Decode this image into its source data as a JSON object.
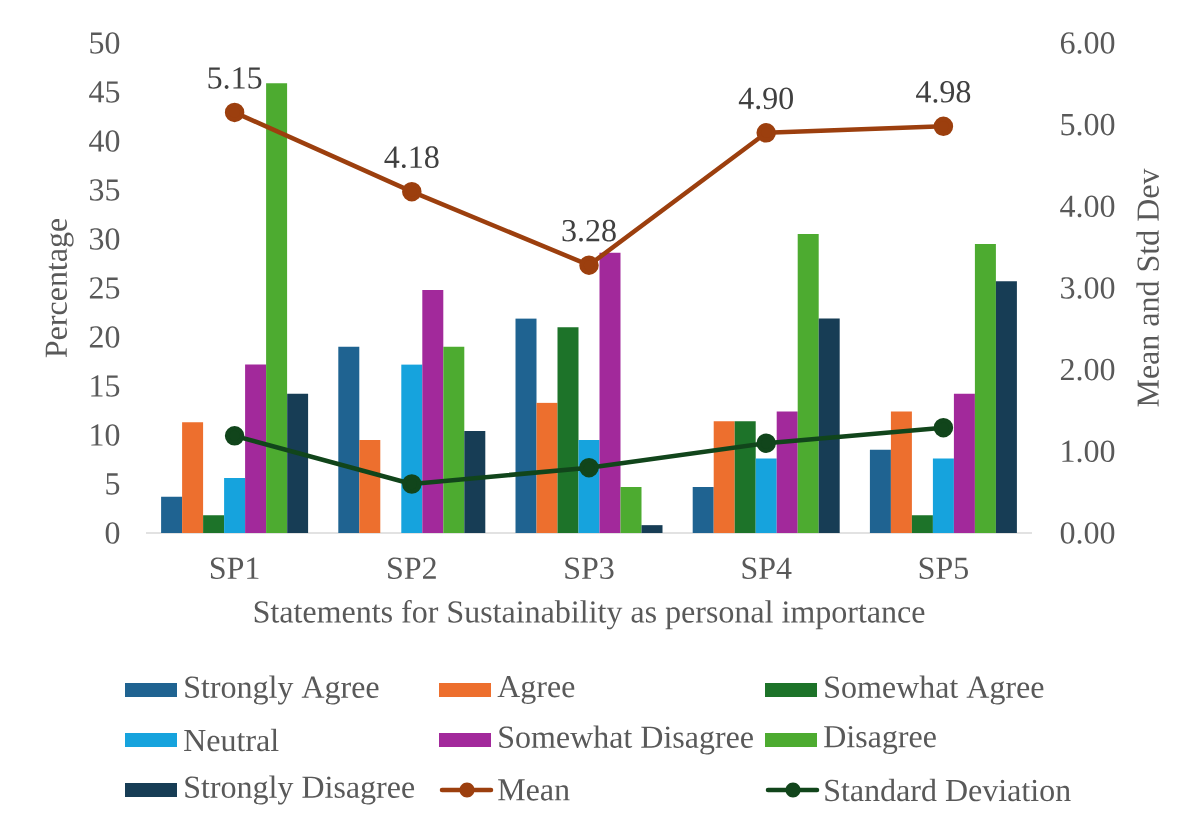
{
  "chart_data": {
    "type": "bar",
    "xlabel": "Statements for Sustainability as personal importance",
    "ylabel": "Percentage",
    "y2label": "Mean and Std Dev",
    "categories": [
      "SP1",
      "SP2",
      "SP3",
      "SP4",
      "SP5"
    ],
    "series": [
      {
        "name": "Strongly Agree",
        "color": "#1f6391",
        "values": [
          3.7,
          19.0,
          21.9,
          4.7,
          8.5
        ]
      },
      {
        "name": "Agree",
        "color": "#ed6f2e",
        "values": [
          11.3,
          9.5,
          13.3,
          11.4,
          12.4
        ]
      },
      {
        "name": "Somewhat Agree",
        "color": "#1d7329",
        "values": [
          1.8,
          null,
          21.0,
          11.4,
          1.8
        ]
      },
      {
        "name": "Neutral",
        "color": "#16a3dd",
        "values": [
          5.6,
          17.2,
          9.5,
          7.6,
          7.6
        ]
      },
      {
        "name": "Somewhat Disagree",
        "color": "#a2299b",
        "values": [
          17.2,
          24.8,
          28.6,
          12.4,
          14.2
        ]
      },
      {
        "name": "Disagree",
        "color": "#4dab30",
        "values": [
          45.9,
          19.0,
          4.7,
          30.5,
          29.5
        ]
      },
      {
        "name": "Strongly Disagree",
        "color": "#173d55",
        "values": [
          14.2,
          10.4,
          0.8,
          21.9,
          25.7
        ]
      },
      {
        "name": "Mean",
        "type": "line",
        "axis": "y2",
        "marker": "circle",
        "color": "#9c3f0e",
        "values": [
          5.15,
          4.18,
          3.28,
          4.9,
          4.98
        ],
        "value_labels": [
          "5.15",
          "4.18",
          "3.28",
          "4.90",
          "4.98"
        ]
      },
      {
        "name": "Standard Deviation",
        "type": "line",
        "axis": "y2",
        "marker": "circle",
        "color": "#11451b",
        "values": [
          1.19,
          0.6,
          0.8,
          1.1,
          1.29
        ]
      }
    ],
    "ylim": [
      0,
      50
    ],
    "yticks": [
      0,
      5,
      10,
      15,
      20,
      25,
      30,
      35,
      40,
      45,
      50
    ],
    "y2lim": [
      0,
      6
    ],
    "y2ticks": [
      {
        "value": 0,
        "label": "0.00"
      },
      {
        "value": 1,
        "label": "1.00"
      },
      {
        "value": 2,
        "label": "2.00"
      },
      {
        "value": 3,
        "label": "3.00"
      },
      {
        "value": 4,
        "label": "4.00"
      },
      {
        "value": 5,
        "label": "5.00"
      },
      {
        "value": 6,
        "label": "6.00"
      }
    ],
    "legend": "bottom"
  }
}
